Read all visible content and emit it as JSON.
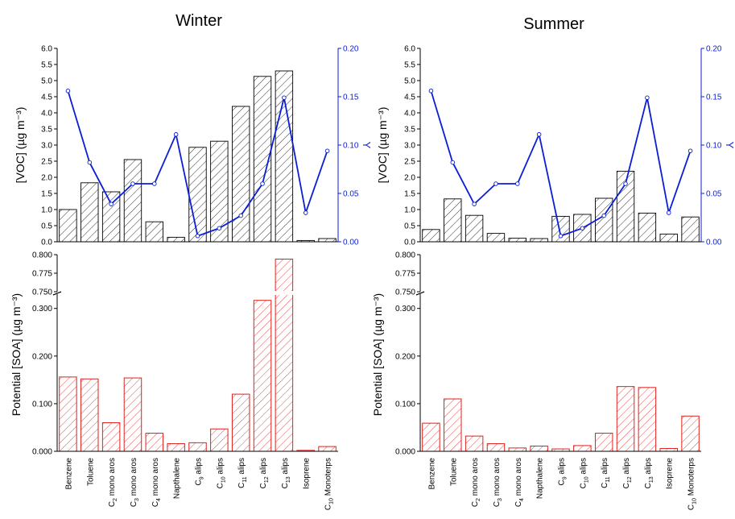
{
  "colors": {
    "voc_bar_stroke": "#000000",
    "soa_bar_stroke": "#e0201c",
    "yield_line": "#0a1ed6",
    "axis": "#000000",
    "secondary_axis": "#0a1ed6"
  },
  "axes": {
    "voc_ylabel": "[VOC] (µg m⁻³)",
    "yield_ylabel": "Y",
    "soa_ylabel": "Potential [SOA] (µg m⁻³)",
    "voc_ticks": [
      "0.0",
      "0.5",
      "1.0",
      "1.5",
      "2.0",
      "2.5",
      "3.0",
      "3.5",
      "4.0",
      "4.5",
      "5.0",
      "5.5",
      "6.0"
    ],
    "yield_ticks": [
      "0.00",
      "0.05",
      "0.10",
      "0.15",
      "0.20"
    ],
    "soa_upper_ticks": [
      "0.750",
      "0.775",
      "0.800"
    ],
    "soa_lower_ticks": [
      "0.000",
      "0.100",
      "0.200",
      "0.300"
    ]
  },
  "chart_data": [
    {
      "type": "bar",
      "panel": "winter-voc",
      "title": "Winter",
      "categories": [
        "Benzene",
        "Toluene",
        "C2 mono aros",
        "C3 mono aros",
        "C4 mono aros",
        "Napthalene",
        "C9 alips",
        "C10 alips",
        "C11 alips",
        "C12 alips",
        "C13 alips",
        "Isoprene",
        "C10 Monoterps"
      ],
      "series": [
        {
          "name": "[VOC]",
          "values": [
            1.0,
            1.83,
            1.55,
            2.55,
            0.62,
            0.14,
            2.93,
            3.12,
            4.2,
            5.13,
            5.3,
            0.04,
            0.1
          ]
        },
        {
          "name": "Y",
          "values": [
            0.156,
            0.082,
            0.039,
            0.06,
            0.06,
            0.111,
            0.006,
            0.014,
            0.027,
            0.06,
            0.149,
            0.03,
            0.094
          ]
        }
      ],
      "ylim": [
        0,
        6.0
      ],
      "y2lim": [
        0,
        0.2
      ]
    },
    {
      "type": "bar",
      "panel": "summer-voc",
      "title": "Summer",
      "categories": [
        "Benzene",
        "Toluene",
        "C2 mono aros",
        "C3 mono aros",
        "C4 mono aros",
        "Napthalene",
        "C9 alips",
        "C10 alips",
        "C11 alips",
        "C12 alips",
        "C13 alips",
        "Isoprene",
        "C10 Monoterps"
      ],
      "series": [
        {
          "name": "[VOC]",
          "values": [
            0.38,
            1.33,
            0.82,
            0.26,
            0.11,
            0.1,
            0.79,
            0.85,
            1.35,
            2.19,
            0.89,
            0.24,
            0.77
          ]
        },
        {
          "name": "Y",
          "values": [
            0.156,
            0.082,
            0.039,
            0.06,
            0.06,
            0.111,
            0.006,
            0.014,
            0.027,
            0.06,
            0.149,
            0.03,
            0.094
          ]
        }
      ],
      "ylim": [
        0,
        6.0
      ],
      "y2lim": [
        0,
        0.2
      ]
    },
    {
      "type": "bar",
      "panel": "winter-soa",
      "categories": [
        "Benzene",
        "Toluene",
        "C2 mono aros",
        "C3 mono aros",
        "C4 mono aros",
        "Napthalene",
        "C9 alips",
        "C10 alips",
        "C11 alips",
        "C12 alips",
        "C13 alips",
        "Isoprene",
        "C10 Monoterps"
      ],
      "values": [
        0.156,
        0.152,
        0.06,
        0.154,
        0.038,
        0.016,
        0.018,
        0.047,
        0.12,
        0.317,
        0.794,
        0.002,
        0.01
      ],
      "ylim": [
        0,
        0.8
      ],
      "axis_break": [
        0.33,
        0.75
      ]
    },
    {
      "type": "bar",
      "panel": "summer-soa",
      "categories": [
        "Benzene",
        "Toluene",
        "C2 mono aros",
        "C3 mono aros",
        "C4 mono aros",
        "Napthalene",
        "C9 alips",
        "C10 alips",
        "C11 alips",
        "C12 alips",
        "C13 alips",
        "Isoprene",
        "C10 Monoterps"
      ],
      "values": [
        0.059,
        0.11,
        0.032,
        0.016,
        0.007,
        0.011,
        0.005,
        0.012,
        0.038,
        0.136,
        0.134,
        0.006,
        0.074
      ],
      "ylim": [
        0,
        0.8
      ],
      "axis_break": [
        0.33,
        0.75
      ]
    }
  ]
}
